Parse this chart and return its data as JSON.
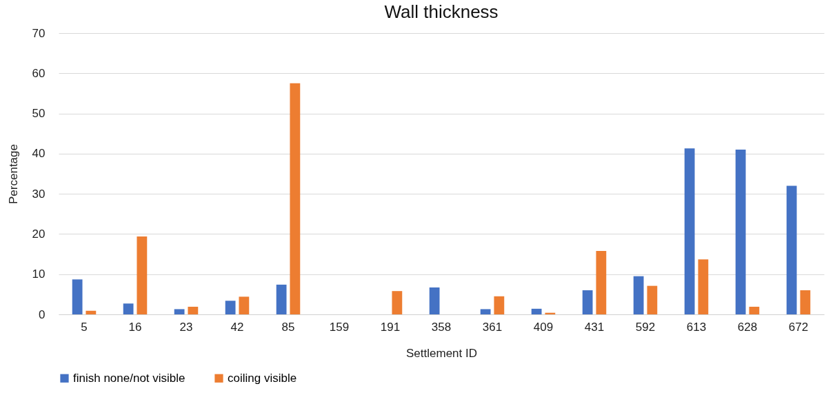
{
  "chart_data": {
    "type": "bar",
    "title": "Wall thickness",
    "xlabel": "Settlement ID",
    "ylabel": "Percentage",
    "categories": [
      "5",
      "16",
      "23",
      "42",
      "85",
      "159",
      "191",
      "358",
      "361",
      "409",
      "431",
      "592",
      "613",
      "628",
      "672"
    ],
    "series": [
      {
        "name": "finish none/not visible",
        "color": "#4472c4",
        "values": [
          8.7,
          2.7,
          1.3,
          3.4,
          7.4,
          0,
          0,
          6.7,
          1.3,
          1.4,
          6.0,
          9.5,
          41.3,
          41.0,
          32.0
        ]
      },
      {
        "name": "coiling visible",
        "color": "#ed7d31",
        "values": [
          0.9,
          19.4,
          1.9,
          4.4,
          57.5,
          0,
          5.8,
          0,
          4.5,
          0.4,
          15.8,
          7.1,
          13.7,
          1.9,
          6.0
        ]
      }
    ],
    "ylim": [
      0,
      70
    ],
    "yticks": [
      0,
      10,
      20,
      30,
      40,
      50,
      60,
      70
    ],
    "grid": "y",
    "legend": "bottom"
  }
}
